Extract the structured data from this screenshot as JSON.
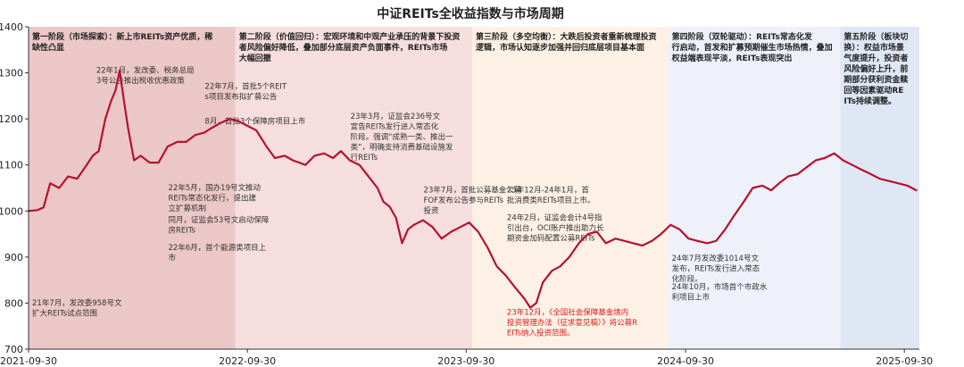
{
  "chart_data": {
    "type": "line",
    "title": "中证REITs全收益指数与市场周期",
    "xlabel": "",
    "ylabel": "",
    "ylim": [
      700,
      1400
    ],
    "yticks": [
      700,
      800,
      900,
      1000,
      1100,
      1200,
      1300,
      1400
    ],
    "xlim": [
      "2021-09-30",
      "2025-10-25"
    ],
    "xticks": [
      "2021-09-30",
      "2022-09-30",
      "2023-09-30",
      "2024-09-30",
      "2025-09-30"
    ],
    "grid": false,
    "legend": "none",
    "colors": {
      "line": "#b5122e",
      "phase1": "#ecc7c7",
      "phase2": "#f7dede",
      "phase3": "#fdf1e6",
      "phase4": "#eef1f9",
      "phase5": "#dfe6f4",
      "annotation": "#333333",
      "highlight": "#e31a1c"
    },
    "phases": [
      {
        "start": "2021-09-30",
        "end": "2022-09-10",
        "color": "phase1",
        "text": "第一阶段（市场探索）：新上市REITs资产优质，稀缺性凸显"
      },
      {
        "start": "2022-09-10",
        "end": "2023-10-10",
        "color": "phase2",
        "text": "第二阶段（价值回归）：宏观环境和中观产业承压的背景下投资者风险偏好降低，叠加部分底层资产负面事件，REITs市场大幅回撤"
      },
      {
        "start": "2023-10-10",
        "end": "2024-09-01",
        "color": "phase3",
        "text": "第三阶段（多空均衡）：大跌后投资者重新梳理投资逻辑，市场认知逐步加强并回归底层项目基本面"
      },
      {
        "start": "2024-09-01",
        "end": "2025-06-15",
        "color": "phase4",
        "text": "第四阶段（双轮驱动）：REITs常态化发行启动，首发和扩募预期催生市场热情，叠加权益端表现平淡，REITs表现突出"
      },
      {
        "start": "2025-06-15",
        "end": "2025-10-25",
        "color": "phase5",
        "text": "第五阶段（板块切换）：权益市场景气度提升，投资者风险偏好上升，前期部分获利资金赎回等因素驱动REITs持续调整。"
      }
    ],
    "annotations": [
      {
        "date": "2022-01-15",
        "value": 1300,
        "color": "annotation",
        "text": "22年1月，发改委、税务总局3号公告推出税收优惠政策"
      },
      {
        "date": "2022-07-15",
        "value": 1265,
        "color": "annotation",
        "text": "22年7月，首批5个REITs项目发布拟扩募公告"
      },
      {
        "date": "2022-07-15",
        "value": 1190,
        "color": "annotation",
        "text": "8月，首批3个保障房项目上市"
      },
      {
        "date": "2022-05-15",
        "value": 1045,
        "color": "annotation",
        "text": "22年5月，国办19号文推动REITs常态化发行，提出建立扩募机制"
      },
      {
        "date": "2022-05-15",
        "value": 975,
        "color": "annotation",
        "text": "同月，证监会53号文启动保障房REITs"
      },
      {
        "date": "2022-05-15",
        "value": 915,
        "color": "annotation",
        "text": "22年6月，首个能源类项目上市"
      },
      {
        "date": "2021-09-30",
        "value": 795,
        "color": "annotation",
        "text": "21年7月，发改委958号文扩大REITs试点范围"
      },
      {
        "date": "2023-03-15",
        "value": 1200,
        "color": "annotation",
        "text": "23年3月，证监会236号文宣告REITs发行进入常态化阶段。强调“成熟一类、推出一类”，明确支持消费基础设施发行REITs"
      },
      {
        "date": "2023-07-15",
        "value": 1040,
        "color": "annotation",
        "text": "23年7月，首批公募基金公募FOF发布公告参与REITs投资"
      },
      {
        "date": "2023-12-01",
        "value": 1040,
        "color": "annotation",
        "text": "23年12月-24年1月，首批消费类REITs项目上市。"
      },
      {
        "date": "2023-12-01",
        "value": 980,
        "color": "annotation",
        "text": "24年2月，证监会会计4号指引出台，OCI账户推出助力长期资金加码配置公募REITs"
      },
      {
        "date": "2023-12-01",
        "value": 775,
        "color": "highlight",
        "text": "23年12月，《全国社会保障基金境内投资管理办法（征求意见稿）》将公募REITs纳入投资范围。"
      },
      {
        "date": "2024-09-01",
        "value": 892,
        "color": "annotation",
        "text": "24年7月发改委1014号文发布，REITs发行进入常态化阶段。"
      },
      {
        "date": "2024-09-01",
        "value": 830,
        "color": "annotation",
        "text": "24年10月，市场首个市政水利项目上市"
      }
    ],
    "series": [
      {
        "x": [
          "2021-09-30",
          "2021-10-15",
          "2021-10-25",
          "2021-11-05",
          "2021-11-20",
          "2021-12-05",
          "2021-12-20",
          "2022-01-05",
          "2022-01-15",
          "2022-01-25",
          "2022-02-05",
          "2022-02-15",
          "2022-02-22",
          "2022-03-01",
          "2022-03-08",
          "2022-03-15",
          "2022-03-25",
          "2022-04-05",
          "2022-04-20",
          "2022-05-05",
          "2022-05-20",
          "2022-06-05",
          "2022-06-20",
          "2022-07-05",
          "2022-07-20",
          "2022-08-01",
          "2022-08-15",
          "2022-08-31",
          "2022-09-15",
          "2022-09-30",
          "2022-10-15",
          "2022-11-01",
          "2022-11-15",
          "2022-12-01",
          "2022-12-15",
          "2023-01-05",
          "2023-01-20",
          "2023-02-05",
          "2023-02-20",
          "2023-03-05",
          "2023-03-20",
          "2023-04-05",
          "2023-04-20",
          "2023-05-05",
          "2023-05-15",
          "2023-05-25",
          "2023-06-05",
          "2023-06-15",
          "2023-06-25",
          "2023-07-05",
          "2023-07-20",
          "2023-08-05",
          "2023-08-20",
          "2023-09-05",
          "2023-09-20",
          "2023-10-05",
          "2023-10-20",
          "2023-11-05",
          "2023-11-20",
          "2023-12-05",
          "2023-12-20",
          "2024-01-05",
          "2024-01-15",
          "2024-01-25",
          "2024-02-05",
          "2024-02-20",
          "2024-03-05",
          "2024-03-20",
          "2024-04-05",
          "2024-04-20",
          "2024-05-05",
          "2024-05-20",
          "2024-06-05",
          "2024-06-20",
          "2024-07-05",
          "2024-07-20",
          "2024-08-05",
          "2024-08-20",
          "2024-09-05",
          "2024-09-20",
          "2024-10-05",
          "2024-10-20",
          "2024-11-05",
          "2024-11-20",
          "2024-12-05",
          "2024-12-20",
          "2025-01-05",
          "2025-01-20",
          "2025-02-05",
          "2025-02-20",
          "2025-03-05",
          "2025-03-20",
          "2025-04-05",
          "2025-04-20",
          "2025-05-05",
          "2025-05-20",
          "2025-06-05",
          "2025-06-20",
          "2025-07-05",
          "2025-07-20",
          "2025-08-05",
          "2025-08-20",
          "2025-09-05",
          "2025-09-20",
          "2025-10-05",
          "2025-10-20"
        ],
        "y": [
          1000,
          1002,
          1008,
          1060,
          1050,
          1075,
          1070,
          1100,
          1120,
          1130,
          1200,
          1240,
          1262,
          1305,
          1240,
          1180,
          1110,
          1120,
          1105,
          1105,
          1140,
          1150,
          1150,
          1165,
          1170,
          1180,
          1190,
          1200,
          1195,
          1185,
          1175,
          1140,
          1115,
          1120,
          1110,
          1100,
          1120,
          1125,
          1115,
          1130,
          1110,
          1100,
          1075,
          1050,
          1020,
          1010,
          985,
          930,
          960,
          970,
          980,
          965,
          940,
          955,
          965,
          975,
          955,
          920,
          880,
          860,
          835,
          810,
          790,
          800,
          845,
          870,
          880,
          900,
          930,
          950,
          955,
          930,
          940,
          935,
          930,
          925,
          935,
          950,
          970,
          960,
          940,
          935,
          930,
          935,
          960,
          990,
          1020,
          1050,
          1055,
          1045,
          1060,
          1075,
          1080,
          1095,
          1110,
          1115,
          1125,
          1110,
          1100,
          1090,
          1080,
          1070,
          1065,
          1060,
          1055,
          1045
        ]
      }
    ]
  }
}
